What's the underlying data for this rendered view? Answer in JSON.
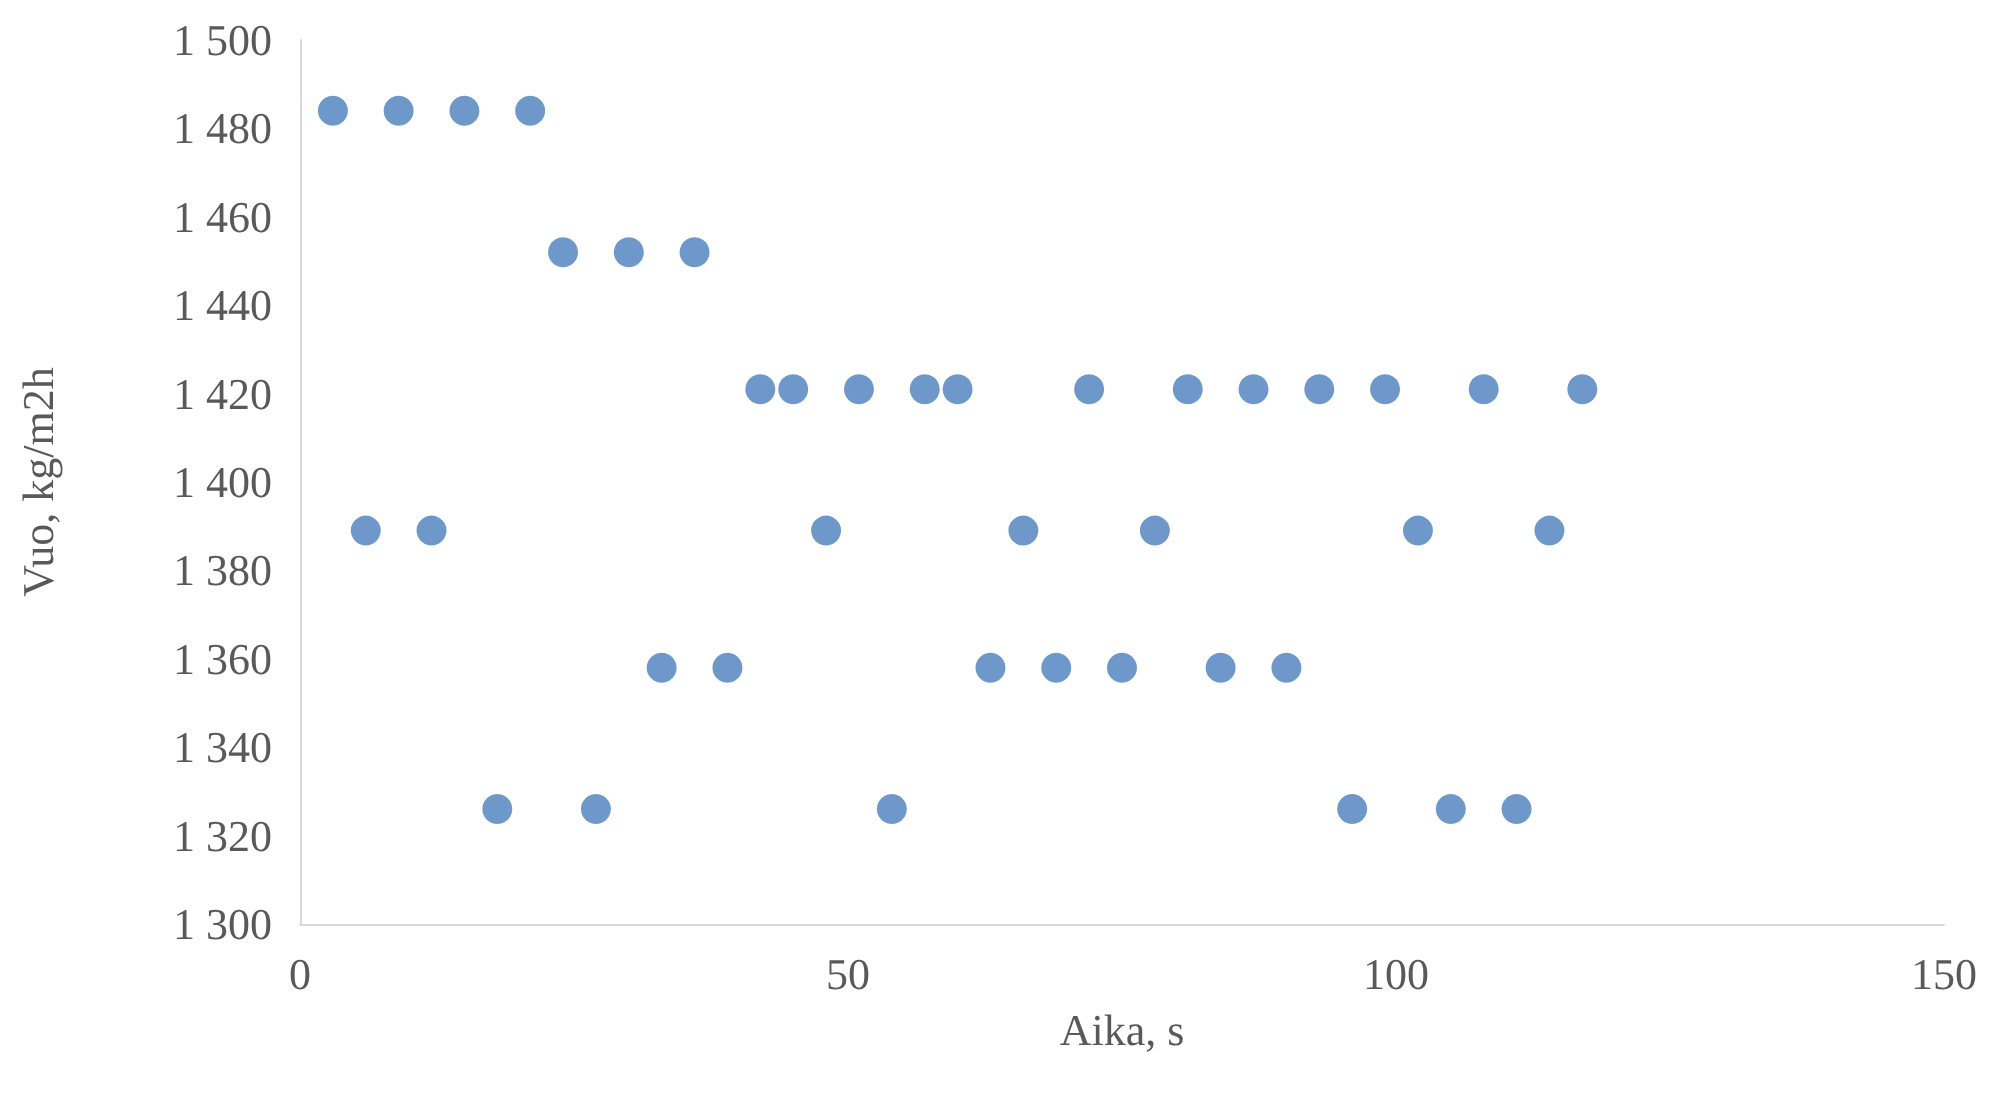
{
  "chart_data": {
    "type": "scatter",
    "xlabel": "Aika, s",
    "ylabel": "Vuo, kg/m2h",
    "x": [
      3,
      6,
      9,
      12,
      15,
      18,
      21,
      24,
      27,
      30,
      33,
      36,
      39,
      42,
      45,
      48,
      51,
      54,
      57,
      60,
      63,
      66,
      69,
      72,
      75,
      78,
      81,
      84,
      87,
      90,
      93,
      96,
      99,
      102,
      105,
      108,
      111,
      114,
      117
    ],
    "values": [
      1484,
      1389,
      1484,
      1389,
      1484,
      1326,
      1484,
      1452,
      1326,
      1452,
      1358,
      1452,
      1358,
      1421,
      1421,
      1389,
      1421,
      1326,
      1421,
      1421,
      1358,
      1389,
      1358,
      1421,
      1358,
      1389,
      1421,
      1358,
      1421,
      1358,
      1421,
      1326,
      1421,
      1389,
      1326,
      1421,
      1326,
      1389,
      1421
    ],
    "color": "#4a7ebb",
    "marker": "circle",
    "xlim": [
      0,
      150
    ],
    "xticks": [
      0,
      50,
      100,
      150
    ],
    "ylim": [
      1300,
      1500
    ],
    "yticks": [
      {
        "value": 1300,
        "label": "1 300"
      },
      {
        "value": 1320,
        "label": "1 320"
      },
      {
        "value": 1340,
        "label": "1 340"
      },
      {
        "value": 1360,
        "label": "1 360"
      },
      {
        "value": 1380,
        "label": "1 380"
      },
      {
        "value": 1400,
        "label": "1 400"
      },
      {
        "value": 1420,
        "label": "1 420"
      },
      {
        "value": 1440,
        "label": "1 440"
      },
      {
        "value": 1460,
        "label": "1 460"
      },
      {
        "value": 1480,
        "label": "1 480"
      },
      {
        "value": 1500,
        "label": "1 500"
      }
    ],
    "grid": false
  }
}
